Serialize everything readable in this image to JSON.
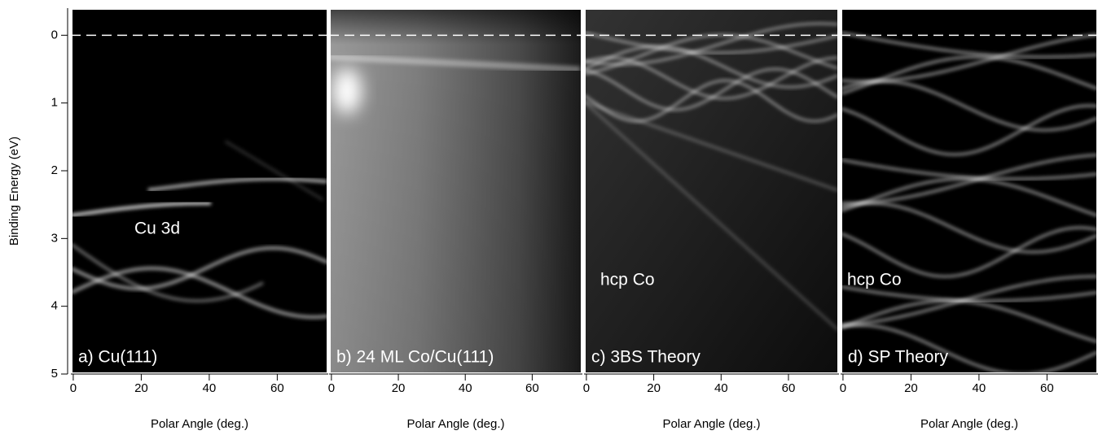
{
  "chart_data": [
    {
      "type": "image",
      "panel_label": "a) Cu(111)",
      "annotation": "Cu 3d",
      "xlabel": "Polar Angle (deg.)",
      "ylabel": "Binding Energy (eV)",
      "xlim": [
        -0.7,
        75
      ],
      "xticks": [
        0,
        20,
        40,
        60
      ],
      "ylim": [
        -0.4,
        5
      ],
      "yticks": [
        0,
        1,
        2,
        3,
        4,
        5
      ],
      "y_inverted": true,
      "hline": 0
    },
    {
      "type": "image",
      "panel_label": "b) 24 ML Co/Cu(111)",
      "xlabel": "Polar Angle (deg.)",
      "xlim": [
        -0.7,
        75
      ],
      "xticks": [
        0,
        20,
        40,
        60
      ],
      "hline": 0
    },
    {
      "type": "image",
      "panel_label": "c)  3BS Theory",
      "annotation": "hcp Co",
      "xlabel": "Polar Angle (deg.)",
      "xlim": [
        -0.7,
        75
      ],
      "xticks": [
        0,
        20,
        40,
        60
      ],
      "hline": 0
    },
    {
      "type": "image",
      "panel_label": "d) SP Theory",
      "annotation": "hcp Co",
      "xlabel": "Polar Angle (deg.)",
      "xlim": [
        -0.7,
        75
      ],
      "xticks": [
        0,
        20,
        40,
        60
      ],
      "hline": 0
    }
  ]
}
